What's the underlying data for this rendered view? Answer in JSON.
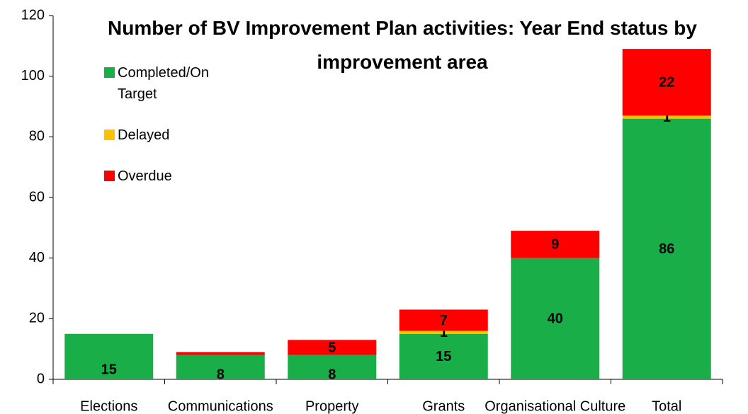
{
  "chart_data": {
    "type": "stacked_bar",
    "title": "Number of BV Improvement Plan activities: Year End status by improvement area",
    "categories": [
      "Elections",
      "Communications",
      "Property",
      "Grants",
      "Organisational Culture",
      "Total"
    ],
    "series": [
      {
        "name": "Completed/On Target",
        "color": "#1aae48",
        "values": [
          15,
          8,
          8,
          15,
          40,
          86
        ],
        "value_labels": [
          "15",
          "8",
          "8",
          "15",
          "40",
          "86"
        ]
      },
      {
        "name": "Delayed",
        "color": "#ffc000",
        "values": [
          0,
          0,
          0,
          1,
          0,
          1
        ],
        "value_labels": [
          null,
          null,
          null,
          "1",
          null,
          "1"
        ]
      },
      {
        "name": "Overdue",
        "color": "#ff0000",
        "values": [
          0,
          1,
          5,
          7,
          9,
          22
        ],
        "value_labels": [
          null,
          null,
          "5",
          "7",
          "9",
          "22"
        ]
      }
    ],
    "ylim": [
      0,
      120
    ],
    "yticks": [
      0,
      20,
      40,
      60,
      80,
      100,
      120
    ],
    "legend": "upper left"
  }
}
